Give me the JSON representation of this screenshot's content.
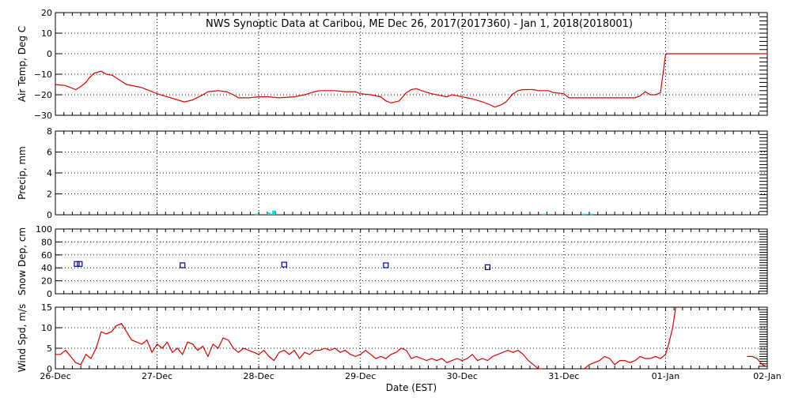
{
  "chart_data": {
    "title": "NWS Synoptic Data at Caribou, ME   Dec 26, 2017(2017360) - Jan  1, 2018(2018001)",
    "xlabel": "Date (EST)",
    "x_ticks": [
      "26-Dec",
      "27-Dec",
      "28-Dec",
      "29-Dec",
      "30-Dec",
      "31-Dec",
      "01-Jan",
      "02-Jan"
    ],
    "xlim": [
      0,
      7
    ],
    "panels": [
      {
        "id": "air-temp",
        "type": "line",
        "ylabel": "Air Temp, Deg C",
        "ylim": [
          -30,
          20
        ],
        "y_ticks": [
          "−30",
          "−20",
          "−10",
          "0",
          "10",
          "20"
        ],
        "y_tick_values": [
          -30,
          -20,
          -10,
          0,
          10,
          20
        ],
        "color": "#dd0000",
        "segments": [
          [
            [
              0,
              -15
            ],
            [
              0.1,
              -15.5
            ],
            [
              0.2,
              -17.5
            ],
            [
              0.25,
              -16
            ],
            [
              0.3,
              -14
            ],
            [
              0.33,
              -12
            ],
            [
              0.38,
              -9.5
            ],
            [
              0.45,
              -8.5
            ],
            [
              0.5,
              -10
            ],
            [
              0.56,
              -10.5
            ],
            [
              0.62,
              -12.5
            ],
            [
              0.7,
              -15
            ],
            [
              0.85,
              -16.5
            ],
            [
              1,
              -19.5
            ],
            [
              1.1,
              -21
            ],
            [
              1.2,
              -22.5
            ],
            [
              1.27,
              -23.5
            ],
            [
              1.35,
              -22.5
            ],
            [
              1.45,
              -20
            ],
            [
              1.5,
              -18.5
            ],
            [
              1.6,
              -18
            ],
            [
              1.68,
              -18.5
            ],
            [
              1.75,
              -20
            ],
            [
              1.8,
              -21.5
            ],
            [
              1.9,
              -21.5
            ],
            [
              2,
              -21
            ],
            [
              2.1,
              -21
            ],
            [
              2.2,
              -21.5
            ],
            [
              2.35,
              -21
            ],
            [
              2.45,
              -20
            ],
            [
              2.55,
              -18.5
            ],
            [
              2.6,
              -18
            ],
            [
              2.75,
              -18
            ],
            [
              2.85,
              -18.5
            ],
            [
              2.95,
              -18.5
            ],
            [
              3.0,
              -19.5
            ],
            [
              3.1,
              -20
            ],
            [
              3.2,
              -21
            ],
            [
              3.25,
              -23
            ],
            [
              3.3,
              -24
            ],
            [
              3.38,
              -23
            ],
            [
              3.45,
              -19
            ],
            [
              3.5,
              -17.5
            ],
            [
              3.55,
              -17
            ],
            [
              3.6,
              -18
            ],
            [
              3.7,
              -19.5
            ],
            [
              3.8,
              -20.5
            ],
            [
              3.85,
              -21
            ],
            [
              3.9,
              -20
            ],
            [
              3.95,
              -20.5
            ],
            [
              4.0,
              -21
            ],
            [
              4.1,
              -22
            ],
            [
              4.2,
              -23.5
            ],
            [
              4.28,
              -25
            ],
            [
              4.32,
              -26
            ],
            [
              4.38,
              -25
            ],
            [
              4.43,
              -23.5
            ],
            [
              4.5,
              -19.5
            ],
            [
              4.55,
              -18
            ],
            [
              4.6,
              -17.5
            ],
            [
              4.7,
              -17.5
            ],
            [
              4.75,
              -18
            ],
            [
              4.85,
              -18
            ],
            [
              4.9,
              -19
            ],
            [
              5.0,
              -19.5
            ],
            [
              5.05,
              -21.5
            ],
            [
              5.1,
              -21.5
            ],
            [
              5.3,
              -21.5
            ],
            [
              5.7,
              -21.5
            ],
            [
              5.75,
              -20.5
            ],
            [
              5.8,
              -18.5
            ],
            [
              5.85,
              -20
            ],
            [
              5.9,
              -20
            ],
            [
              5.95,
              -19
            ],
            [
              6.0,
              -0.5
            ],
            [
              6.02,
              0
            ],
            [
              7,
              0
            ]
          ]
        ]
      },
      {
        "id": "precip",
        "type": "bar",
        "ylabel": "Precip, mm",
        "ylim": [
          0,
          8
        ],
        "y_ticks": [
          "0",
          "2",
          "4",
          "6",
          "8"
        ],
        "y_tick_values": [
          0,
          2,
          4,
          6,
          8
        ],
        "color": "#00dddd",
        "bar_width_days": 0.035,
        "bars": [
          [
            1.98,
            0.1
          ],
          [
            2.1,
            0.2
          ],
          [
            2.15,
            0.4
          ],
          [
            4.8,
            0.1
          ],
          [
            5.2,
            0.1
          ],
          [
            5.27,
            0.1
          ]
        ]
      },
      {
        "id": "snow-depth",
        "type": "scatter",
        "ylabel": "Snow Dep, cm",
        "ylim": [
          0,
          100
        ],
        "y_ticks": [
          "0",
          "20",
          "40",
          "60",
          "80",
          "100"
        ],
        "y_tick_values": [
          0,
          20,
          40,
          60,
          80,
          100
        ],
        "color": "#0000aa",
        "points": [
          [
            0.21,
            46
          ],
          [
            0.24,
            46
          ],
          [
            1.25,
            44
          ],
          [
            2.25,
            45
          ],
          [
            3.25,
            44
          ],
          [
            4.25,
            41
          ]
        ]
      },
      {
        "id": "wind-speed",
        "type": "line",
        "ylabel": "Wind Spd, m/s",
        "ylim": [
          0,
          15
        ],
        "y_ticks": [
          "0",
          "5",
          "10",
          "15"
        ],
        "y_tick_values": [
          0,
          5,
          10,
          15
        ],
        "color": "#dd0000",
        "segments": [
          [
            [
              0,
              3.5
            ],
            [
              0.05,
              3.5
            ],
            [
              0.1,
              4.5
            ],
            [
              0.15,
              3
            ],
            [
              0.2,
              1.5
            ],
            [
              0.25,
              1
            ],
            [
              0.3,
              3.5
            ],
            [
              0.35,
              2.5
            ],
            [
              0.4,
              5
            ],
            [
              0.45,
              9
            ],
            [
              0.5,
              8.5
            ],
            [
              0.55,
              9
            ],
            [
              0.6,
              10.5
            ],
            [
              0.65,
              11
            ],
            [
              0.7,
              9
            ],
            [
              0.75,
              7
            ],
            [
              0.8,
              6.5
            ],
            [
              0.85,
              6
            ],
            [
              0.9,
              7
            ],
            [
              0.95,
              4
            ],
            [
              1.0,
              6
            ],
            [
              1.05,
              5
            ],
            [
              1.1,
              6.5
            ],
            [
              1.15,
              4
            ],
            [
              1.2,
              5
            ],
            [
              1.25,
              3.5
            ],
            [
              1.3,
              6.5
            ],
            [
              1.35,
              6
            ],
            [
              1.4,
              4.5
            ],
            [
              1.45,
              5.5
            ],
            [
              1.5,
              3
            ],
            [
              1.55,
              6
            ],
            [
              1.6,
              5
            ],
            [
              1.65,
              7.5
            ],
            [
              1.7,
              7
            ],
            [
              1.75,
              5
            ],
            [
              1.8,
              4
            ],
            [
              1.85,
              5
            ],
            [
              1.9,
              4.5
            ],
            [
              1.95,
              4
            ],
            [
              2.0,
              3.5
            ],
            [
              2.05,
              4.5
            ],
            [
              2.1,
              3
            ],
            [
              2.15,
              2
            ],
            [
              2.2,
              4
            ],
            [
              2.25,
              4.5
            ],
            [
              2.3,
              3.5
            ],
            [
              2.35,
              4.5
            ],
            [
              2.4,
              2.5
            ],
            [
              2.45,
              4
            ],
            [
              2.5,
              3.5
            ],
            [
              2.55,
              4.5
            ],
            [
              2.6,
              4.5
            ],
            [
              2.65,
              5
            ],
            [
              2.7,
              4.5
            ],
            [
              2.75,
              5
            ],
            [
              2.8,
              4
            ],
            [
              2.85,
              4.5
            ],
            [
              2.9,
              3.5
            ],
            [
              2.95,
              3
            ],
            [
              3.0,
              3.5
            ],
            [
              3.05,
              4.5
            ],
            [
              3.1,
              3.5
            ],
            [
              3.15,
              2.5
            ],
            [
              3.2,
              3
            ],
            [
              3.25,
              2.5
            ],
            [
              3.3,
              3.5
            ],
            [
              3.35,
              4
            ],
            [
              3.4,
              5
            ],
            [
              3.45,
              4.5
            ],
            [
              3.5,
              2.5
            ],
            [
              3.55,
              3
            ],
            [
              3.6,
              2.5
            ],
            [
              3.65,
              2
            ],
            [
              3.7,
              2.5
            ],
            [
              3.75,
              2
            ],
            [
              3.8,
              2.5
            ],
            [
              3.85,
              1.5
            ],
            [
              3.9,
              2
            ],
            [
              3.95,
              2.5
            ],
            [
              4.0,
              2
            ],
            [
              4.05,
              2.5
            ],
            [
              4.1,
              3.5
            ],
            [
              4.15,
              2
            ],
            [
              4.2,
              2.5
            ],
            [
              4.25,
              2
            ],
            [
              4.3,
              3
            ],
            [
              4.35,
              3.5
            ],
            [
              4.4,
              4
            ],
            [
              4.45,
              4.5
            ],
            [
              4.5,
              4
            ],
            [
              4.55,
              4.5
            ],
            [
              4.6,
              3.5
            ],
            [
              4.65,
              2
            ],
            [
              4.7,
              1
            ],
            [
              4.75,
              0
            ],
            [
              4.8,
              0
            ]
          ],
          [
            [
              5.2,
              0
            ],
            [
              5.25,
              1
            ],
            [
              5.3,
              1.5
            ],
            [
              5.35,
              2
            ],
            [
              5.4,
              3
            ],
            [
              5.45,
              2.5
            ],
            [
              5.5,
              1
            ],
            [
              5.55,
              2
            ],
            [
              5.6,
              2
            ],
            [
              5.65,
              1.5
            ],
            [
              5.7,
              2
            ],
            [
              5.75,
              3
            ],
            [
              5.8,
              2.5
            ],
            [
              5.85,
              2.5
            ],
            [
              5.9,
              3
            ],
            [
              5.95,
              2.5
            ],
            [
              6.0,
              3.5
            ],
            [
              6.03,
              6
            ],
            [
              6.07,
              10
            ],
            [
              6.1,
              15
            ]
          ],
          [
            [
              6.8,
              3
            ],
            [
              6.85,
              3
            ],
            [
              6.9,
              2.5
            ],
            [
              6.95,
              1
            ],
            [
              7.0,
              0.5
            ]
          ]
        ]
      }
    ]
  }
}
